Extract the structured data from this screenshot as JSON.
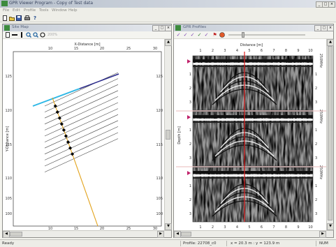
{
  "app": {
    "title": "GPR Viewer Program - Copy of Test data"
  },
  "menu": [
    "File",
    "Edit",
    "Profile",
    "Tools",
    "Window",
    "Help"
  ],
  "toolbar": [
    "new",
    "open",
    "save",
    "print",
    "help"
  ],
  "site_map": {
    "window_title": "Site Map",
    "zoom": "200%",
    "x_axis_label": "X-Distance [m]",
    "y_axis_label": "Y-Distance [m]",
    "x_ticks": [
      "10",
      "15",
      "20",
      "25",
      "30"
    ],
    "y_ticks": [
      "125",
      "120",
      "115",
      "110",
      "105",
      "100"
    ],
    "colors": {
      "track_highlight": "#2fb8e6",
      "track_selected": "#2a2a8c",
      "track": "#444444",
      "path": "#e2a21a",
      "marker": "#000000"
    }
  },
  "profile": {
    "window_title": "GPR Profiles",
    "x_axis_label": "Distance [m]",
    "y_axis_label": "Depth [m]",
    "x_ticks": [
      "1",
      "2",
      "3",
      "4",
      "5",
      "6",
      "7",
      "8",
      "9",
      "10"
    ],
    "y_ticks": [
      "1",
      "2",
      "3"
    ],
    "channel_labels": [
      "250MHz",
      "250MHz",
      "250MHz"
    ],
    "cursor_color": "#e02020"
  },
  "status": {
    "ready": "Ready",
    "profile": "Profile: 22708_c0",
    "position": "x = 20.3 m : y = 123.9 m",
    "mode": "NUM"
  }
}
